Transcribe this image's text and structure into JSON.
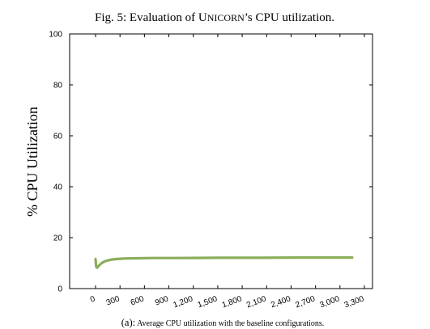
{
  "figure": {
    "title_prefix": "Fig. 5: Evaluation of U",
    "title_smallcaps": "NICORN",
    "title_suffix": "’s CPU utilization.",
    "caption_prefix": "(a):",
    "caption_text": "Average CPU utilization with the baseline configurations."
  },
  "chart_data": {
    "type": "line",
    "title": "",
    "xlabel": "",
    "ylabel": "% CPU Utilization",
    "xlim": [
      0,
      3300
    ],
    "ylim": [
      0,
      100
    ],
    "x_ticks": [
      "0",
      "300",
      "600",
      "900",
      "1,200",
      "1,500",
      "1,800",
      "2,100",
      "2,400",
      "2,700",
      "3,000",
      "3,300"
    ],
    "y_ticks": [
      "0",
      "20",
      "40",
      "60",
      "80",
      "100"
    ],
    "grid": false,
    "line_color": "#8aad5a",
    "series": [
      {
        "x": [
          0,
          5,
          10,
          20,
          30,
          50,
          80,
          120,
          180,
          250,
          350,
          500,
          700,
          1000,
          1500,
          2000,
          2500,
          3000,
          3150
        ],
        "y": [
          11.5,
          9.5,
          8.5,
          8.2,
          8.6,
          9.3,
          10.1,
          10.8,
          11.3,
          11.6,
          11.8,
          11.9,
          12.0,
          12.0,
          12.1,
          12.1,
          12.2,
          12.2,
          12.2
        ]
      }
    ]
  }
}
